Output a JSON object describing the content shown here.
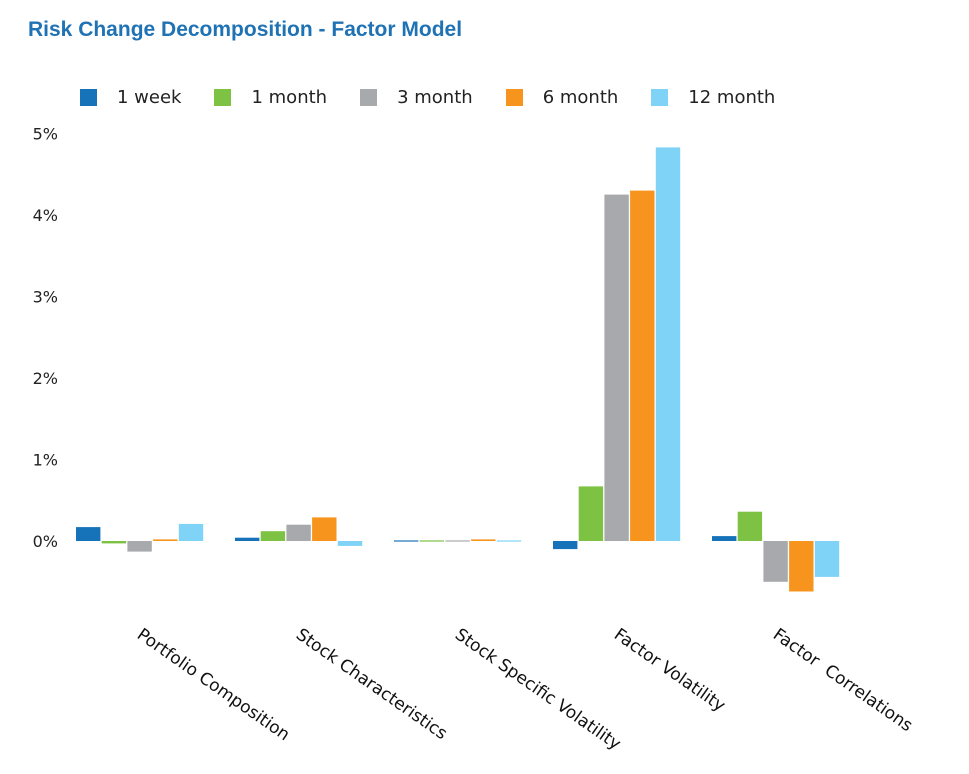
{
  "chart_data": {
    "type": "bar",
    "title": "Risk Change Decomposition - Factor Model",
    "xlabel": "",
    "ylabel": "",
    "categories": [
      "Portfolio Composition",
      "Stock Characteristics",
      "Stock Specific Volatility",
      "Factor Volatility",
      "Factor  Correlations"
    ],
    "series": [
      {
        "name": "1 week",
        "color": "#1673B9",
        "values": [
          0.17,
          0.04,
          -0.01,
          -0.1,
          0.06
        ]
      },
      {
        "name": "1 month",
        "color": "#7DC243",
        "values": [
          -0.03,
          0.12,
          -0.01,
          0.67,
          0.36
        ]
      },
      {
        "name": "3 month",
        "color": "#A7A9AC",
        "values": [
          -0.13,
          0.2,
          -0.01,
          4.25,
          -0.5
        ]
      },
      {
        "name": "6 month",
        "color": "#F7941D",
        "values": [
          0.02,
          0.29,
          0.02,
          4.3,
          -0.62
        ]
      },
      {
        "name": "12 month",
        "color": "#7FD3F7",
        "values": [
          0.21,
          -0.06,
          -0.01,
          4.83,
          -0.44
        ]
      }
    ],
    "yticks": [
      "0%",
      "1%",
      "2%",
      "3%",
      "4%",
      "5%"
    ],
    "ylim": [
      -0.6,
      5
    ],
    "grid": false,
    "legend_position": "top"
  }
}
